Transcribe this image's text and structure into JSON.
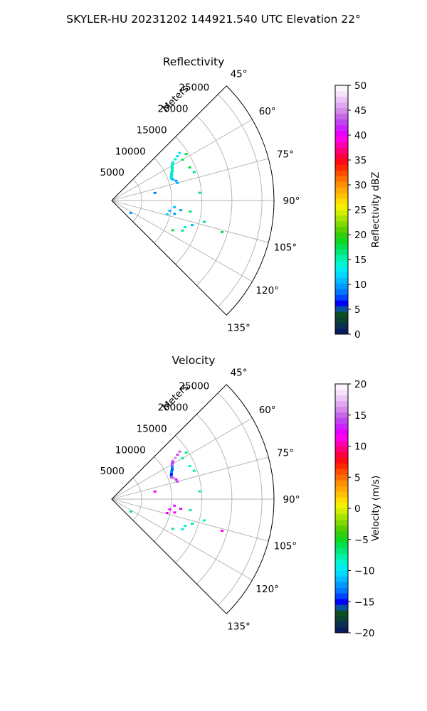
{
  "figure": {
    "suptitle": "SKYLER-HU  20231202  144921.540 UTC Elevation 22°"
  },
  "chart_data": [
    {
      "type": "scatter",
      "projection": "polar-sector",
      "title": "Reflectivity",
      "radial_label": "Meters",
      "radial_ticks": [
        5000,
        10000,
        15000,
        20000,
        25000
      ],
      "radial_limit": [
        0,
        27000
      ],
      "angle_ticks": [
        "45°",
        "60°",
        "75°",
        "90°",
        "105°",
        "120°",
        "135°"
      ],
      "angle_tick_values": [
        45,
        60,
        75,
        90,
        105,
        120,
        135
      ],
      "angle_range": [
        45,
        135
      ],
      "grid": true,
      "colorbar": {
        "label": "Reflectivity dBZ",
        "min": 0,
        "max": 50,
        "ticks": [
          0,
          5,
          10,
          15,
          20,
          25,
          30,
          35,
          40,
          45,
          50
        ],
        "tick_labels": [
          "0",
          "5",
          "10",
          "15",
          "20",
          "25",
          "30",
          "35",
          "40",
          "45",
          "50"
        ],
        "colors": [
          "#0a1a5e",
          "#0a2f52",
          "#0c4030",
          "#0c4f24",
          "#0a50a0",
          "#0000ff",
          "#0044ff",
          "#0077ff",
          "#0099ff",
          "#00bbff",
          "#00d9ff",
          "#00ecf0",
          "#00f5d0",
          "#00f0a8",
          "#00e87a",
          "#00e050",
          "#10d820",
          "#30d010",
          "#58d000",
          "#80da00",
          "#a8e400",
          "#cfee00",
          "#f2f200",
          "#ffdd00",
          "#ffc200",
          "#ffa800",
          "#ff8e00",
          "#ff6e00",
          "#ff4e00",
          "#ff2800",
          "#ff0a10",
          "#ff0040",
          "#ff0078",
          "#ff00b0",
          "#ff00e8",
          "#e800ff",
          "#cc22ff",
          "#c044f0",
          "#c866e8",
          "#d488e8",
          "#e0a8f0",
          "#ecc6f6",
          "#f6e2fa",
          "#fdf4fd"
        ]
      },
      "points": [
        {
          "az": 55,
          "r": 13800,
          "v": 13
        },
        {
          "az": 56,
          "r": 13200,
          "v": 12
        },
        {
          "az": 57,
          "r": 12600,
          "v": 14
        },
        {
          "az": 58,
          "r": 12000,
          "v": 13
        },
        {
          "az": 59,
          "r": 11800,
          "v": 15
        },
        {
          "az": 60,
          "r": 11600,
          "v": 14
        },
        {
          "az": 61,
          "r": 11500,
          "v": 13
        },
        {
          "az": 62,
          "r": 11400,
          "v": 16
        },
        {
          "az": 63,
          "r": 11300,
          "v": 14
        },
        {
          "az": 64,
          "r": 11200,
          "v": 15
        },
        {
          "az": 65,
          "r": 11000,
          "v": 13
        },
        {
          "az": 66,
          "r": 10900,
          "v": 14
        },
        {
          "az": 67,
          "r": 10800,
          "v": 12
        },
        {
          "az": 68,
          "r": 10700,
          "v": 15
        },
        {
          "az": 69,
          "r": 10600,
          "v": 13
        },
        {
          "az": 70,
          "r": 10600,
          "v": 12
        },
        {
          "az": 71,
          "r": 10800,
          "v": 11
        },
        {
          "az": 73,
          "r": 11200,
          "v": 10
        },
        {
          "az": 75,
          "r": 11300,
          "v": 11
        },
        {
          "az": 60,
          "r": 13600,
          "v": 17
        },
        {
          "az": 58,
          "r": 14600,
          "v": 18
        },
        {
          "az": 67,
          "r": 14100,
          "v": 18
        },
        {
          "az": 85,
          "r": 14700,
          "v": 17
        },
        {
          "az": 71,
          "r": 14500,
          "v": 16
        },
        {
          "az": 96,
          "r": 10500,
          "v": 11
        },
        {
          "az": 98,
          "r": 11600,
          "v": 10
        },
        {
          "az": 100,
          "r": 9800,
          "v": 11
        },
        {
          "az": 102,
          "r": 10700,
          "v": 10
        },
        {
          "az": 104,
          "r": 9500,
          "v": 12
        },
        {
          "az": 107,
          "r": 14000,
          "v": 11
        },
        {
          "az": 110,
          "r": 13000,
          "v": 14
        },
        {
          "az": 113,
          "r": 12800,
          "v": 16
        },
        {
          "az": 116,
          "r": 11300,
          "v": 18
        },
        {
          "az": 103,
          "r": 15800,
          "v": 17
        },
        {
          "az": 106,
          "r": 19100,
          "v": 18
        },
        {
          "az": 98,
          "r": 13200,
          "v": 16
        },
        {
          "az": 123,
          "r": 3800,
          "v": 10
        },
        {
          "az": 80,
          "r": 7300,
          "v": 9
        }
      ]
    },
    {
      "type": "scatter",
      "projection": "polar-sector",
      "title": "Velocity",
      "radial_label": "Meters",
      "radial_ticks": [
        5000,
        10000,
        15000,
        20000,
        25000
      ],
      "radial_limit": [
        0,
        27000
      ],
      "angle_ticks": [
        "45°",
        "60°",
        "75°",
        "90°",
        "105°",
        "120°",
        "135°"
      ],
      "angle_tick_values": [
        45,
        60,
        75,
        90,
        105,
        120,
        135
      ],
      "angle_range": [
        45,
        135
      ],
      "grid": true,
      "colorbar": {
        "label": "Velocity (m/s)",
        "min": -20,
        "max": 20,
        "ticks": [
          -20,
          -15,
          -10,
          -5,
          0,
          5,
          10,
          15,
          20
        ],
        "tick_labels": [
          "−20",
          "−15",
          "−10",
          "−5",
          "0",
          "5",
          "10",
          "15",
          "20"
        ],
        "colors": [
          "#0a1a5e",
          "#0a2f52",
          "#0c4030",
          "#0c4f24",
          "#0a50a0",
          "#0000ff",
          "#0044ff",
          "#0077ff",
          "#0099ff",
          "#00bbff",
          "#00d9ff",
          "#00ecf0",
          "#00f5d0",
          "#00f0a8",
          "#00e87a",
          "#00e050",
          "#10d820",
          "#30d010",
          "#58d000",
          "#80da00",
          "#a8e400",
          "#cfee00",
          "#f2f200",
          "#ffdd00",
          "#ffc200",
          "#ffa800",
          "#ff8e00",
          "#ff6e00",
          "#ff4e00",
          "#ff2800",
          "#ff0a10",
          "#ff0040",
          "#ff0078",
          "#ff00b0",
          "#ff00e8",
          "#e800ff",
          "#cc22ff",
          "#c044f0",
          "#c866e8",
          "#d488e8",
          "#e0a8f0",
          "#ecc6f6",
          "#f6e2fa",
          "#fdf4fd"
        ]
      },
      "points": [
        {
          "az": 55,
          "r": 13800,
          "v": 15
        },
        {
          "az": 56,
          "r": 13200,
          "v": 14
        },
        {
          "az": 57,
          "r": 12600,
          "v": 16
        },
        {
          "az": 58,
          "r": 12000,
          "v": 15
        },
        {
          "az": 59,
          "r": 11800,
          "v": 13
        },
        {
          "az": 60,
          "r": 11600,
          "v": 14
        },
        {
          "az": 61,
          "r": 11500,
          "v": 15
        },
        {
          "az": 62,
          "r": 11400,
          "v": -13
        },
        {
          "az": 63,
          "r": 11300,
          "v": -12
        },
        {
          "az": 64,
          "r": 11200,
          "v": -14
        },
        {
          "az": 65,
          "r": 11000,
          "v": -13
        },
        {
          "az": 66,
          "r": 10900,
          "v": -12
        },
        {
          "az": 67,
          "r": 10800,
          "v": -14
        },
        {
          "az": 68,
          "r": 10700,
          "v": -15
        },
        {
          "az": 69,
          "r": 10600,
          "v": -13
        },
        {
          "az": 70,
          "r": 10600,
          "v": 14
        },
        {
          "az": 71,
          "r": 10800,
          "v": 15
        },
        {
          "az": 73,
          "r": 11200,
          "v": 13
        },
        {
          "az": 75,
          "r": 11300,
          "v": 14
        },
        {
          "az": 60,
          "r": 13600,
          "v": -8
        },
        {
          "az": 58,
          "r": 14600,
          "v": -7
        },
        {
          "az": 67,
          "r": 14100,
          "v": -9
        },
        {
          "az": 85,
          "r": 14700,
          "v": -8
        },
        {
          "az": 71,
          "r": 14500,
          "v": -8
        },
        {
          "az": 96,
          "r": 10500,
          "v": 13
        },
        {
          "az": 98,
          "r": 11600,
          "v": 12
        },
        {
          "az": 100,
          "r": 9800,
          "v": 12
        },
        {
          "az": 102,
          "r": 10700,
          "v": 11
        },
        {
          "az": 104,
          "r": 9500,
          "v": 12
        },
        {
          "az": 107,
          "r": 14000,
          "v": -8
        },
        {
          "az": 110,
          "r": 13000,
          "v": -9
        },
        {
          "az": 113,
          "r": 12800,
          "v": -10
        },
        {
          "az": 116,
          "r": 11300,
          "v": -8
        },
        {
          "az": 103,
          "r": 15800,
          "v": -9
        },
        {
          "az": 106,
          "r": 19100,
          "v": 11
        },
        {
          "az": 98,
          "r": 13200,
          "v": -8
        },
        {
          "az": 123,
          "r": 3800,
          "v": -7
        },
        {
          "az": 80,
          "r": 7300,
          "v": 12
        }
      ]
    }
  ]
}
